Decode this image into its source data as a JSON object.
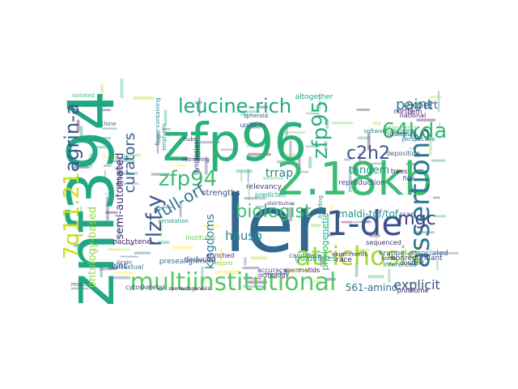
{
  "words": [
    {
      "text": "zfp96",
      "color": "#2ab17a"
    },
    {
      "text": "znf394",
      "color": "#22a783"
    },
    {
      "text": "ler",
      "color": "#31688e"
    },
    {
      "text": "2.18kb",
      "color": "#3ebc73"
    },
    {
      "text": "1-de",
      "color": "#3a538b"
    },
    {
      "text": "assertions",
      "color": "#2a788e"
    },
    {
      "text": "multiinstitutional",
      "color": "#58c765"
    },
    {
      "text": "atrichosis",
      "color": "#a2da37"
    },
    {
      "text": "7q11.21",
      "color": "#c7e020"
    },
    {
      "text": "agrin-a",
      "color": "#38588c"
    },
    {
      "text": "leucine-rich",
      "color": "#23a884"
    },
    {
      "text": "zfp95",
      "color": "#2db27d"
    },
    {
      "text": "64kda",
      "color": "#35b779"
    },
    {
      "text": "paint",
      "color": "#26818e"
    },
    {
      "text": "c2h2",
      "color": "#3b518b"
    },
    {
      "text": "zfp94",
      "color": "#40bd72"
    },
    {
      "text": "rlzf-y",
      "color": "#39558c"
    },
    {
      "text": "biologist",
      "color": "#3fbc73"
    },
    {
      "text": "full-orf",
      "color": "#2a788e"
    },
    {
      "text": "curators",
      "color": "#365c8d"
    },
    {
      "text": "mgc",
      "color": "#433e85"
    },
    {
      "text": "expert",
      "color": "#375a8c"
    },
    {
      "text": "explicit",
      "color": "#3a538b"
    },
    {
      "text": "trrap",
      "color": "#26828e"
    },
    {
      "text": "tandem",
      "color": "#1f968b"
    },
    {
      "text": "hausp",
      "color": "#24868e"
    },
    {
      "text": "kingdoms",
      "color": "#287d8e"
    },
    {
      "text": "ontology-based",
      "color": "#90d743"
    },
    {
      "text": "semi-automated",
      "color": "#472d7b"
    },
    {
      "text": "maldi-tof/tof",
      "color": "#21908d"
    },
    {
      "text": "561-amino",
      "color": "#2c728e"
    },
    {
      "text": "phylogenetic",
      "color": "#29af7f"
    },
    {
      "text": "strengths",
      "color": "#3b528b"
    },
    {
      "text": "guidelines",
      "color": "#22a884"
    },
    {
      "text": "relevancy",
      "color": "#443a83"
    },
    {
      "text": "pachytene",
      "color": "#481b6d"
    },
    {
      "text": "sequenced",
      "color": "#46337f"
    },
    {
      "text": "spermatids",
      "color": "#440154"
    },
    {
      "text": "orthology",
      "color": "#482878"
    },
    {
      "text": "kruppel-associated",
      "color": "#355f8d"
    },
    {
      "text": "nonredundant",
      "color": "#404688"
    },
    {
      "text": "presealignment",
      "color": "#2e6f8e"
    },
    {
      "text": "inferences",
      "color": "#2c728e"
    },
    {
      "text": "deduced",
      "color": "#3f4889"
    },
    {
      "text": "zinc",
      "color": "#3e4c8a"
    },
    {
      "text": "libraries",
      "color": "#46307e"
    },
    {
      "text": "enriched",
      "color": "#472c7a"
    },
    {
      "text": "trees",
      "color": "#460a5d"
    },
    {
      "text": "scan",
      "color": "#404588"
    },
    {
      "text": "context",
      "color": "#3d4e8a"
    },
    {
      "text": "race",
      "color": "#481769"
    },
    {
      "text": "reproduction",
      "color": "#3b528b"
    },
    {
      "text": "depositing",
      "color": "#31688e"
    },
    {
      "text": "perspective",
      "color": "#2a778e"
    },
    {
      "text": "national",
      "color": "#481d6f"
    },
    {
      "text": "northern",
      "color": "#471063"
    },
    {
      "text": "consortium",
      "color": "#3b528b"
    },
    {
      "text": "alignments",
      "color": "#6ece58"
    },
    {
      "text": "altogether",
      "color": "#1fa188"
    },
    {
      "text": "proteome",
      "color": "#46085c"
    },
    {
      "text": "institutes",
      "color": "#5ec962"
    },
    {
      "text": "cytoskeletal",
      "color": "#414487"
    },
    {
      "text": "contextual",
      "color": "#2a788e"
    },
    {
      "text": "retrieving",
      "color": "#472d7b"
    },
    {
      "text": "annotation",
      "color": "#1f988b"
    },
    {
      "text": "predicted",
      "color": "#1fa088"
    },
    {
      "text": "uniform",
      "color": "#3e4a89"
    },
    {
      "text": "hubs",
      "color": "#453882"
    },
    {
      "text": "clone",
      "color": "#2d708e"
    },
    {
      "text": "isolated",
      "color": "#43bf71"
    },
    {
      "text": "fide",
      "color": "#3e4c8a"
    },
    {
      "text": "candidate",
      "color": "#2f6b8e"
    },
    {
      "text": "spermatogenesis",
      "color": "#44015a"
    },
    {
      "text": "accuracy",
      "color": "#3c4f8a"
    },
    {
      "text": "pipeline",
      "color": "#aadc32"
    },
    {
      "text": "versatile",
      "color": "#fde725"
    },
    {
      "text": "record",
      "color": "#7ad151"
    },
    {
      "text": "software-assisted",
      "color": "#238a8d"
    },
    {
      "text": "bona",
      "color": "#46327e"
    },
    {
      "text": "distribution",
      "color": "#3f4788"
    },
    {
      "text": "spheroid",
      "color": "#3a548c"
    },
    {
      "text": "finger-containing",
      "color": "#25858e"
    },
    {
      "text": "emphasis",
      "color": "#23898e"
    },
    {
      "text": "dysplasias",
      "color": "#482475"
    },
    {
      "text": "building",
      "color": "#1e9b8a"
    },
    {
      "text": "experiments",
      "color": "#482173"
    },
    {
      "text": "mscc",
      "color": "#3c508b"
    },
    {
      "text": "brain",
      "color": "#31688e"
    }
  ]
}
